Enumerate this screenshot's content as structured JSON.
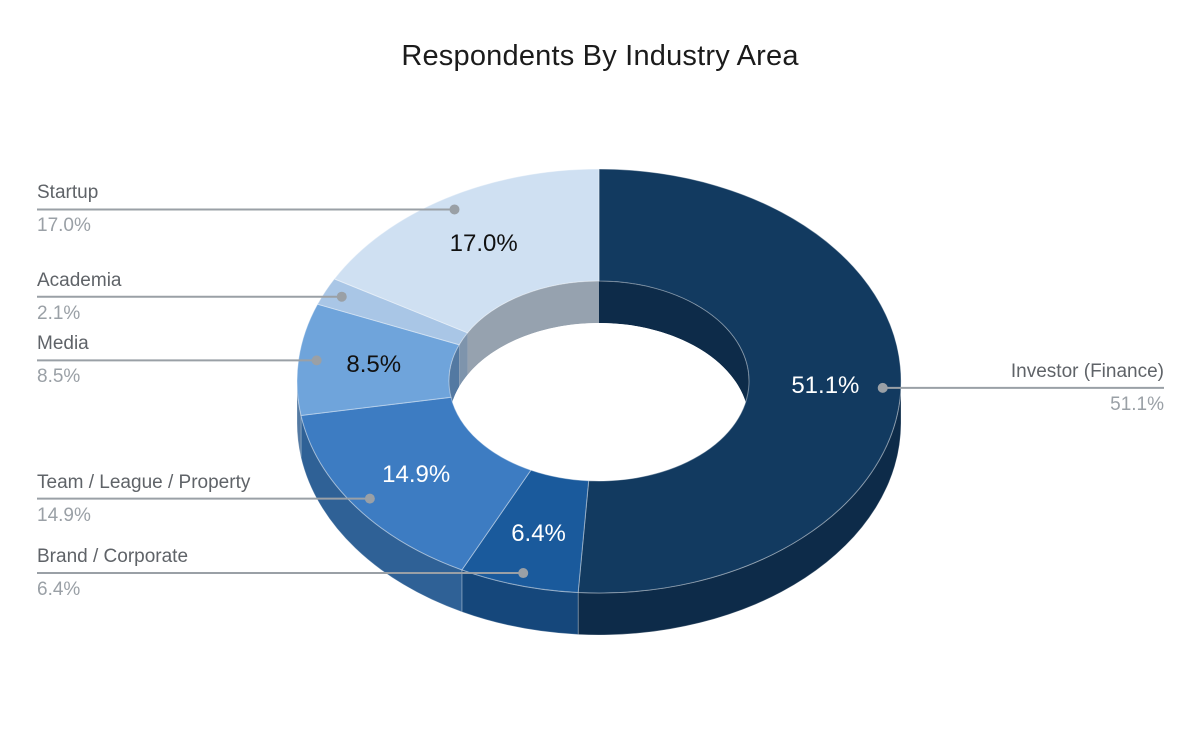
{
  "page": {
    "background": "#FFFFFF"
  },
  "chart_data": {
    "type": "pie",
    "variant": "3d-donut",
    "title": "Respondents By Industry Area",
    "title_color": "#1B1B1B",
    "unit": "%",
    "total": 100,
    "start_angle_deg": 0,
    "direction": "clockwise",
    "hole_ratio": 0.5,
    "legend_position": "callouts",
    "slices": [
      {
        "label": "Investor (Finance)",
        "value": 51.1,
        "display_value": "51.1%",
        "color": "#123A60",
        "depth_color": "#0D2B49",
        "inner_label": "51.1%",
        "inner_label_color": "#FFFFFF",
        "callout_side": "right"
      },
      {
        "label": "Brand / Corporate",
        "value": 6.4,
        "display_value": "6.4%",
        "color": "#1A5A9C",
        "depth_color": "#15477B",
        "inner_label": "6.4%",
        "inner_label_color": "#FFFFFF",
        "callout_side": "left"
      },
      {
        "label": "Team / League / Property",
        "value": 14.9,
        "display_value": "14.9%",
        "color": "#3D7CC2",
        "depth_color": "#2F6196",
        "inner_label": "14.9%",
        "inner_label_color": "#FFFFFF",
        "callout_side": "left"
      },
      {
        "label": "Media",
        "value": 8.5,
        "display_value": "8.5%",
        "color": "#6FA4DB",
        "depth_color": "#5379A2",
        "inner_label": "8.5%",
        "inner_label_color": "#111111",
        "callout_side": "left"
      },
      {
        "label": "Academia",
        "value": 2.1,
        "display_value": "2.1%",
        "color": "#A9C6E6",
        "depth_color": "#7E94AC",
        "inner_label": null,
        "inner_label_color": "#111111",
        "callout_side": "left"
      },
      {
        "label": "Startup",
        "value": 17.0,
        "display_value": "17.0%",
        "color": "#CFE0F2",
        "depth_color": "#96A2AF",
        "inner_label": "17.0%",
        "inner_label_color": "#111111",
        "callout_side": "left"
      }
    ],
    "callout_style": {
      "line_color": "#9AA0A6",
      "dot_color": "#9AA0A6",
      "label_color": "#5F6368",
      "value_color": "#9AA0A6"
    }
  }
}
